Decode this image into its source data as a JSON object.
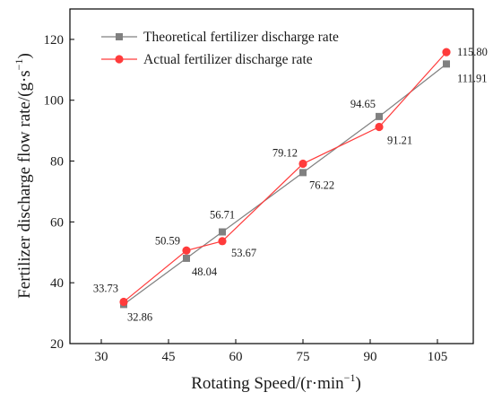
{
  "chart_data": {
    "type": "line",
    "xlabel": "Rotating Speed/(r·min",
    "xlabel_sup": "−1",
    "xlabel_end": ")",
    "ylabel": "Fertilizer discharge flow rate/(g·s",
    "ylabel_sup": "−1",
    "ylabel_end": ")",
    "xlim": [
      23,
      113
    ],
    "ylim": [
      20,
      130
    ],
    "xticks": [
      "30",
      "45",
      "60",
      "75",
      "90",
      "105"
    ],
    "yticks": [
      "20",
      "40",
      "60",
      "80",
      "100",
      "120"
    ],
    "legend_position": "top-left",
    "grid": false,
    "series": [
      {
        "name": "Theoretical fertilizer discharge rate",
        "marker": "square",
        "color": "#808080",
        "x": [
          35,
          49,
          57,
          75,
          92,
          107
        ],
        "y": [
          32.86,
          48.04,
          56.71,
          76.22,
          94.65,
          111.91
        ]
      },
      {
        "name": "Actual fertilizer discharge rate",
        "marker": "circle",
        "color": "#ff3b3b",
        "x": [
          35,
          49,
          57,
          75,
          92,
          107
        ],
        "y": [
          33.73,
          50.59,
          53.67,
          79.12,
          91.21,
          115.8
        ]
      }
    ],
    "labels": [
      {
        "text": "33.73",
        "x": 35,
        "y": 33.73,
        "anchor": "end",
        "dx": -6,
        "dy": -11
      },
      {
        "text": "32.86",
        "x": 35,
        "y": 32.86,
        "anchor": "start",
        "dx": 4,
        "dy": 18
      },
      {
        "text": "50.59",
        "x": 49,
        "y": 50.59,
        "anchor": "end",
        "dx": -7,
        "dy": -7
      },
      {
        "text": "48.04",
        "x": 49,
        "y": 48.04,
        "anchor": "start",
        "dx": 6,
        "dy": 19
      },
      {
        "text": "56.71",
        "x": 57,
        "y": 56.71,
        "anchor": "middle",
        "dx": 0,
        "dy": -15
      },
      {
        "text": "53.67",
        "x": 57,
        "y": 53.67,
        "anchor": "start",
        "dx": 10,
        "dy": 17
      },
      {
        "text": "79.12",
        "x": 75,
        "y": 79.12,
        "anchor": "end",
        "dx": -6,
        "dy": -8
      },
      {
        "text": "76.22",
        "x": 75,
        "y": 76.22,
        "anchor": "start",
        "dx": 7,
        "dy": 18
      },
      {
        "text": "94.65",
        "x": 92,
        "y": 94.65,
        "anchor": "end",
        "dx": -4,
        "dy": -10
      },
      {
        "text": "91.21",
        "x": 92,
        "y": 91.21,
        "anchor": "start",
        "dx": 9,
        "dy": 19
      },
      {
        "text": "115.80",
        "x": 107,
        "y": 115.8,
        "anchor": "start",
        "dx": 12,
        "dy": 4
      },
      {
        "text": "111.91",
        "x": 107,
        "y": 111.91,
        "anchor": "start",
        "dx": 12,
        "dy": 20
      }
    ]
  }
}
